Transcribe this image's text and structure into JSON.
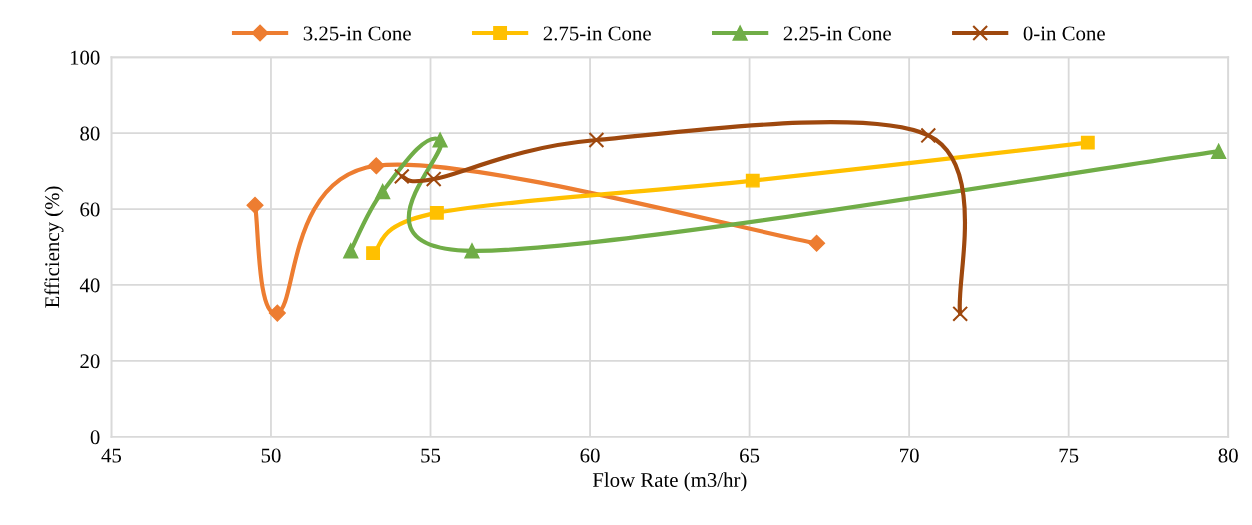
{
  "chart_data": {
    "type": "line",
    "xlabel": "Flow Rate (m3/hr)",
    "ylabel": "Efficiency (%)",
    "xlim": [
      45,
      80
    ],
    "xticks": [
      45,
      50,
      55,
      60,
      65,
      70,
      75,
      80
    ],
    "ylim": [
      0,
      100
    ],
    "yticks": [
      0,
      20,
      40,
      60,
      80,
      100
    ],
    "grid": true,
    "legend": "top",
    "series": [
      {
        "name": "3.25-in Cone",
        "color": "#ed7d31",
        "marker": "diamond",
        "x": [
          49.5,
          50.2,
          53.3,
          67.1
        ],
        "values": [
          61,
          32.6,
          71.4,
          51
        ]
      },
      {
        "name": "2.75-in Cone",
        "color": "#ffc000",
        "marker": "square",
        "x": [
          53.2,
          55.2,
          65.1,
          75.6
        ],
        "values": [
          48.4,
          59,
          67.5,
          77.5
        ]
      },
      {
        "name": "2.25-in Cone",
        "color": "#70ad47",
        "marker": "triangle",
        "x": [
          52.5,
          53.5,
          55.3,
          56.3,
          79.7
        ],
        "values": [
          49,
          64.6,
          78.2,
          49,
          75.2
        ]
      },
      {
        "name": "0-in Cone",
        "color": "#9e480e",
        "marker": "cross",
        "x": [
          54.1,
          55.1,
          60.2,
          70.6,
          71.6
        ],
        "values": [
          68.6,
          67.9,
          78.2,
          79.4,
          32.4
        ]
      }
    ]
  }
}
